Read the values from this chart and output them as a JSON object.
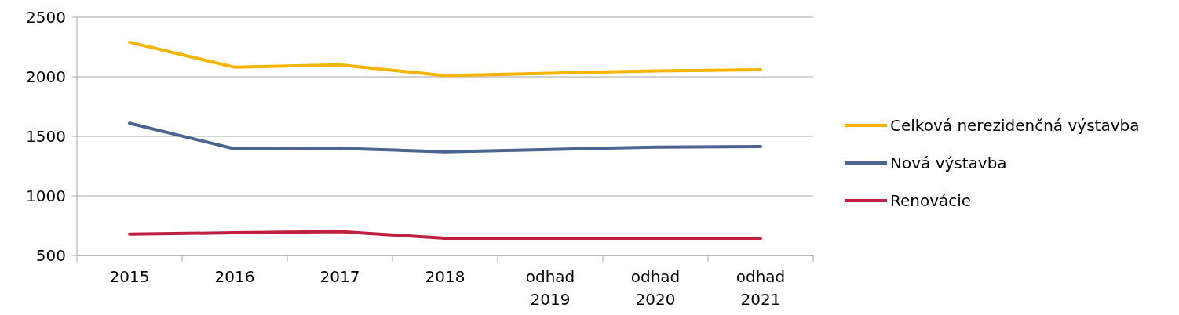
{
  "chart_data": {
    "type": "line",
    "categories": [
      "2015",
      "2016",
      "2017",
      "2018",
      "odhad 2019",
      "odhad 2020",
      "odhad 2021"
    ],
    "series": [
      {
        "name": "Celková nerezidenčná výstavba",
        "color": "#f5b400",
        "values": [
          2290,
          2080,
          2100,
          2010,
          2030,
          2050,
          2060
        ]
      },
      {
        "name": "Nová výstavba",
        "color": "#4a6592",
        "values": [
          1610,
          1395,
          1400,
          1370,
          1390,
          1410,
          1415
        ]
      },
      {
        "name": "Renovácie",
        "color": "#c0203f",
        "values": [
          680,
          690,
          700,
          645,
          645,
          645,
          645
        ]
      }
    ],
    "ylim": [
      500,
      2500
    ],
    "yticks": [
      500,
      1000,
      1500,
      2000,
      2500
    ],
    "grid": "y",
    "legend": "right"
  }
}
